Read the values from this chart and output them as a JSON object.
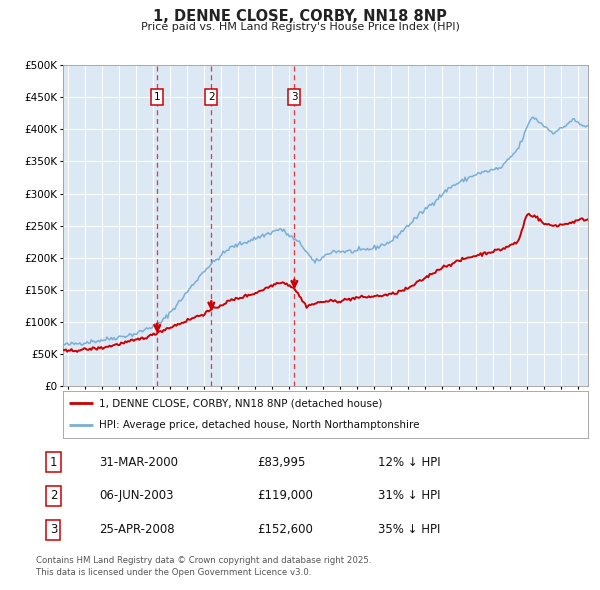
{
  "title": "1, DENNE CLOSE, CORBY, NN18 8NP",
  "subtitle": "Price paid vs. HM Land Registry's House Price Index (HPI)",
  "legend_red": "1, DENNE CLOSE, CORBY, NN18 8NP (detached house)",
  "legend_blue": "HPI: Average price, detached house, North Northamptonshire",
  "footnote": "Contains HM Land Registry data © Crown copyright and database right 2025.\nThis data is licensed under the Open Government Licence v3.0.",
  "transactions": [
    {
      "num": 1,
      "date": "31-MAR-2000",
      "date_x": 2000.25,
      "price": 83995,
      "hpi_pct": "12% ↓ HPI"
    },
    {
      "num": 2,
      "date": "06-JUN-2003",
      "date_x": 2003.43,
      "price": 119000,
      "hpi_pct": "31% ↓ HPI"
    },
    {
      "num": 3,
      "date": "25-APR-2008",
      "date_x": 2008.32,
      "price": 152600,
      "hpi_pct": "35% ↓ HPI"
    }
  ],
  "ylim": [
    0,
    500000
  ],
  "xlim_start": 1994.7,
  "xlim_end": 2025.6,
  "yticks": [
    0,
    50000,
    100000,
    150000,
    200000,
    250000,
    300000,
    350000,
    400000,
    450000,
    500000
  ],
  "xticks": [
    1995,
    1996,
    1997,
    1998,
    1999,
    2000,
    2001,
    2002,
    2003,
    2004,
    2005,
    2006,
    2007,
    2008,
    2009,
    2010,
    2011,
    2012,
    2013,
    2014,
    2015,
    2016,
    2017,
    2018,
    2019,
    2020,
    2021,
    2022,
    2023,
    2024,
    2025
  ],
  "bg_color": "#dce9f5",
  "grid_color": "#ffffff",
  "red_color": "#cc0000",
  "blue_color": "#7aaed6",
  "vline_color": "#ee3333",
  "box_color": "#cc0000",
  "hpi_key_points_x": [
    1995.0,
    1997.0,
    1999.0,
    2000.5,
    2001.5,
    2003.0,
    2004.5,
    2007.5,
    2008.75,
    2009.5,
    2010.5,
    2012.0,
    2013.0,
    2014.0,
    2016.0,
    2017.5,
    2019.0,
    2020.5,
    2021.5,
    2022.3,
    2022.8,
    2023.5,
    2024.0,
    2024.7,
    2025.3
  ],
  "hpi_key_points_y": [
    65000,
    72000,
    82000,
    100000,
    130000,
    180000,
    215000,
    245000,
    220000,
    192000,
    210000,
    210000,
    215000,
    225000,
    275000,
    310000,
    330000,
    340000,
    370000,
    420000,
    410000,
    395000,
    400000,
    415000,
    405000
  ],
  "red_key_points_x": [
    1995.0,
    1997.0,
    1999.0,
    2000.0,
    2000.25,
    2001.5,
    2002.5,
    2003.0,
    2003.43,
    2004.5,
    2006.0,
    2007.5,
    2008.0,
    2008.32,
    2009.0,
    2010.0,
    2011.0,
    2012.0,
    2013.0,
    2014.0,
    2015.0,
    2017.0,
    2018.5,
    2019.5,
    2020.5,
    2021.5,
    2022.0,
    2022.5,
    2023.0,
    2023.5,
    2024.2,
    2025.0,
    2025.3
  ],
  "red_key_points_y": [
    55000,
    60000,
    72000,
    80000,
    83995,
    97000,
    108000,
    113000,
    119000,
    133000,
    145000,
    163000,
    158000,
    152600,
    125000,
    132000,
    133000,
    138000,
    140000,
    143000,
    152000,
    185000,
    200000,
    207000,
    213000,
    225000,
    268000,
    265000,
    253000,
    250000,
    252000,
    258000,
    260000
  ]
}
